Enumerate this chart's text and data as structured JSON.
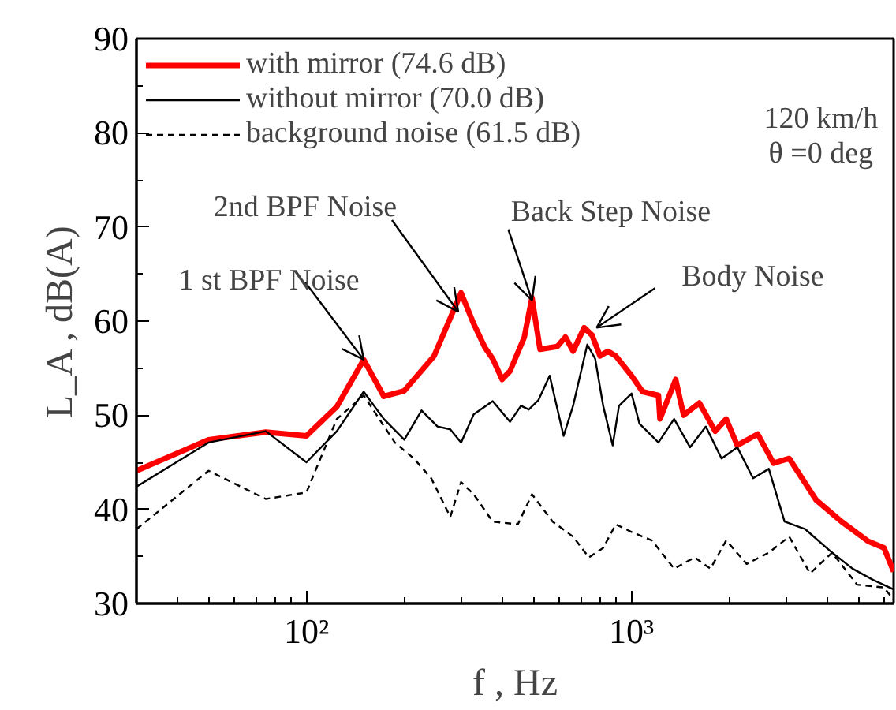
{
  "chart_data": {
    "type": "line",
    "xlabel": "f , Hz",
    "ylabel": "L_A , dB(A)",
    "log": "x",
    "xlim": [
      30,
      6400
    ],
    "xticks": [
      {
        "value": 100,
        "label": "10²"
      },
      {
        "value": 1000,
        "label": "10³"
      }
    ],
    "ylim": [
      30,
      90
    ],
    "yticks": [
      30,
      40,
      50,
      60,
      70,
      80,
      90
    ],
    "grid": false,
    "legend": "top left",
    "series": [
      {
        "name": "with mirror (74.6 dB)",
        "color": "#ff0000",
        "line_style": "solid",
        "x": [
          30,
          50,
          75,
          100,
          124,
          150,
          173,
          200,
          247,
          299,
          327,
          354,
          374,
          400,
          423,
          468,
          494,
          523,
          591,
          626,
          661,
          715,
          756,
          800,
          846,
          894,
          1000,
          1081,
          1210,
          1223,
          1367,
          1446,
          1617,
          1808,
          1955,
          2115,
          2443,
          2733,
          3055,
          3696,
          4424,
          5350,
          5980,
          6400
        ],
        "values": [
          44.1,
          47.4,
          48.2,
          47.8,
          50.9,
          55.9,
          52.0,
          52.6,
          56.3,
          63.0,
          59.7,
          57.2,
          56.0,
          53.8,
          54.7,
          58.3,
          62.5,
          57.0,
          57.3,
          58.3,
          56.8,
          59.3,
          58.5,
          56.3,
          56.8,
          56.3,
          54.2,
          52.5,
          52.1,
          49.6,
          53.8,
          50.0,
          51.3,
          48.3,
          49.6,
          46.8,
          48.0,
          44.9,
          45.4,
          41.0,
          38.7,
          36.6,
          35.9,
          33.4
        ]
      },
      {
        "name": "without mirror (70.0 dB)",
        "color": "#000000",
        "line_style": "solid",
        "x": [
          30,
          50,
          75,
          100,
          124,
          150,
          173,
          200,
          226,
          253,
          277,
          299,
          327,
          374,
          423,
          457,
          483,
          517,
          560,
          618,
          661,
          731,
          773,
          818,
          875,
          915,
          1000,
          1058,
          1210,
          1352,
          1513,
          1692,
          1892,
          2115,
          2365,
          2644,
          2956,
          3420,
          4140,
          4786,
          5536,
          6400
        ],
        "values": [
          42.4,
          47.1,
          48.3,
          45.0,
          48.3,
          52.5,
          49.6,
          47.4,
          50.5,
          48.8,
          48.5,
          47.1,
          50.1,
          51.5,
          49.3,
          51.0,
          50.6,
          51.6,
          54.2,
          47.8,
          51.0,
          57.5,
          56.0,
          51.0,
          46.8,
          51.0,
          52.3,
          49.1,
          47.1,
          49.6,
          46.6,
          48.8,
          45.4,
          46.6,
          43.3,
          44.3,
          38.7,
          37.9,
          35.4,
          33.7,
          32.5,
          31.5
        ]
      },
      {
        "name": "background noise (61.5 dB)",
        "color": "#000000",
        "line_style": "dashed",
        "x": [
          30,
          50,
          75,
          100,
          124,
          150,
          187,
          214,
          242,
          277,
          299,
          327,
          374,
          447,
          494,
          572,
          661,
          739,
          818,
          894,
          1000,
          1156,
          1352,
          1563,
          1749,
          1955,
          2260,
          2644,
          3055,
          3540,
          4140,
          4941,
          5980,
          6400
        ],
        "values": [
          37.9,
          44.1,
          41.1,
          41.8,
          49.6,
          52.1,
          47.1,
          45.4,
          43.3,
          39.2,
          42.9,
          41.6,
          38.7,
          38.4,
          41.6,
          38.7,
          37.1,
          34.9,
          35.9,
          38.4,
          37.6,
          36.7,
          33.7,
          34.9,
          33.7,
          36.7,
          34.2,
          35.4,
          37.1,
          33.2,
          35.4,
          32.0,
          31.7,
          30.4
        ]
      }
    ],
    "annotations": [
      {
        "text": "1 st BPF Noise",
        "x": 150,
        "y": 55.9
      },
      {
        "text": "2nd BPF Noise",
        "x": 293,
        "y": 61
      },
      {
        "text": "Back Step Noise",
        "x": 494,
        "y": 62.2
      },
      {
        "text": "Body Noise",
        "x": 781,
        "y": 59.3
      },
      "120 km/h",
      "θ =0 deg"
    ]
  }
}
